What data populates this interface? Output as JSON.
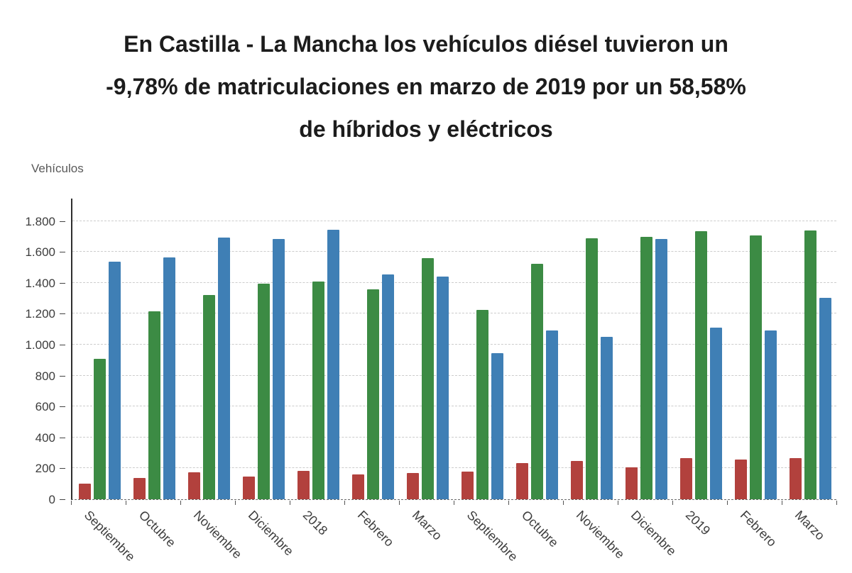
{
  "title_lines": [
    "En Castilla - La Mancha los vehículos diésel tuvieron un",
    "-9,78% de matriculaciones en marzo de 2019 por un 58,58%",
    "de híbridos y eléctricos"
  ],
  "chart_data": {
    "type": "bar",
    "title": "En Castilla - La Mancha los vehículos diésel tuvieron un -9,78% de matriculaciones en marzo de 2019 por un 58,58% de híbridos y eléctricos",
    "xlabel": "",
    "ylabel": "Vehículos",
    "ylim": [
      0,
      1950
    ],
    "grid": "dashed horizontal gridlines",
    "legend_position": "none",
    "y_tick_labels": [
      "0",
      "200",
      "400",
      "600",
      "800",
      "1.000",
      "1.200",
      "1.400",
      "1.600",
      "1.800"
    ],
    "y_tick_values": [
      0,
      200,
      400,
      600,
      800,
      1000,
      1200,
      1400,
      1600,
      1800
    ],
    "categories": [
      "Septiembre",
      "Octubre",
      "Noviembre",
      "Diciembre",
      "2018",
      "Febrero",
      "Marzo",
      "Septiembre",
      "Octubre",
      "Noviembre",
      "Diciembre",
      "2019",
      "Febrero",
      "Marzo"
    ],
    "series": [
      {
        "name": "series-red",
        "color": "#b2413d",
        "values": [
          100,
          140,
          175,
          145,
          185,
          160,
          170,
          180,
          235,
          250,
          205,
          265,
          255,
          265
        ]
      },
      {
        "name": "series-green",
        "color": "#3c8b44",
        "values": [
          910,
          1215,
          1320,
          1395,
          1410,
          1360,
          1560,
          1225,
          1525,
          1690,
          1700,
          1735,
          1705,
          1740
        ]
      },
      {
        "name": "series-blue",
        "color": "#3f7fb5",
        "values": [
          1535,
          1565,
          1695,
          1685,
          1745,
          1455,
          1440,
          945,
          1090,
          1050,
          1685,
          1110,
          1090,
          1305
        ]
      }
    ]
  }
}
